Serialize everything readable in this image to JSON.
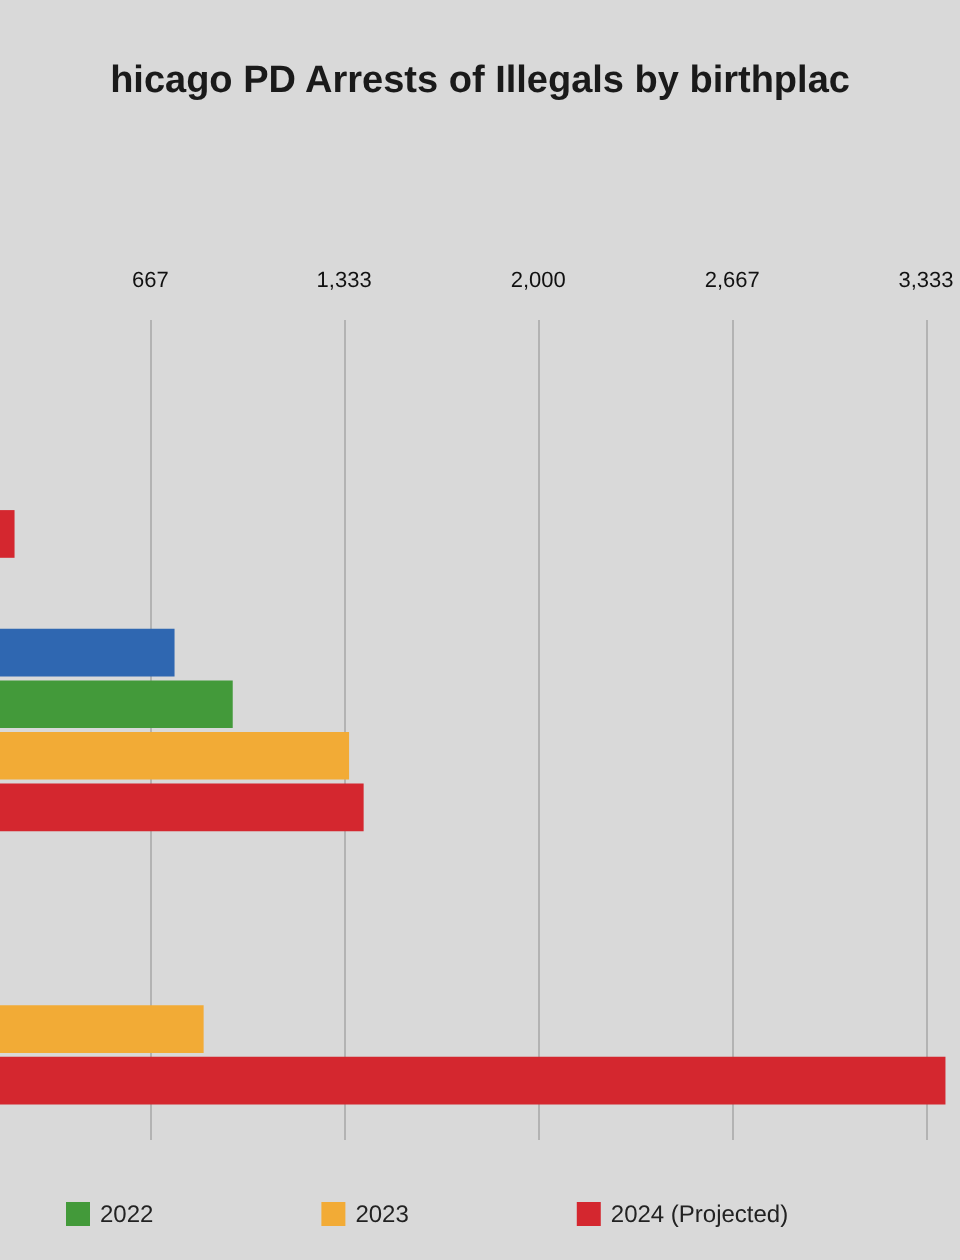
{
  "chart_data": {
    "type": "bar",
    "orientation": "horizontal",
    "title": "hicago PD Arrests of Illegals by birthplac",
    "categories": [
      null,
      null,
      null
    ],
    "series": [
      {
        "color": "#2f67b1",
        "values": [
          null,
          750,
          null
        ]
      },
      {
        "name": "2022",
        "color": "#439a3a",
        "values": [
          null,
          950,
          null
        ]
      },
      {
        "name": "2023",
        "color": "#f2ab36",
        "values": [
          null,
          1350,
          850
        ]
      },
      {
        "name": "2024 (Projected)",
        "color": "#d4272f",
        "values": [
          200,
          1400,
          3400
        ]
      }
    ],
    "xlim": [
      150,
      3450
    ],
    "xticks": [
      667,
      {
        "value": 1333,
        "label": "1,333"
      },
      {
        "value": 2000,
        "label": "2,000"
      },
      {
        "value": 2667,
        "label": "2,667"
      },
      {
        "value": 3333,
        "label": "3,333"
      }
    ],
    "grid": "x",
    "legend": "bottom",
    "tick_labels": "x"
  }
}
